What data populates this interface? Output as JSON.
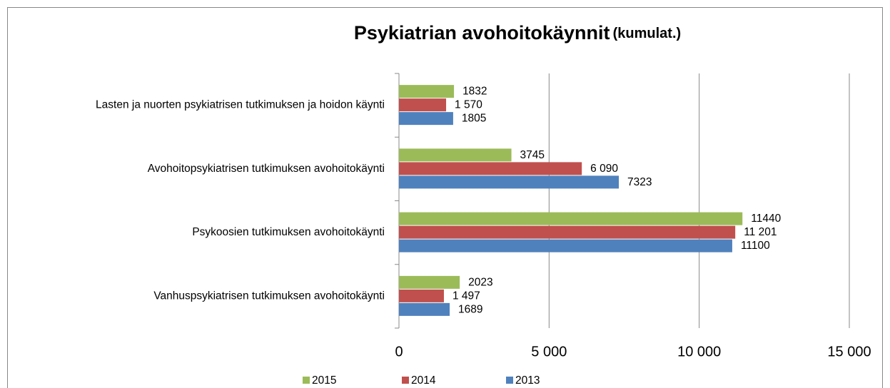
{
  "chart_data": {
    "type": "bar",
    "orientation": "horizontal",
    "title": "Psykiatrian avohoitokäynnit",
    "subtitle": "(kumulat.)",
    "categories": [
      "Lasten ja nuorten psykiatrisen tutkimuksen ja hoidon käynti",
      "Avohoitopsykiatrisen tutkimuksen avohoitokäynti",
      "Psykoosien tutkimuksen avohoitokäynti",
      "Vanhuspsykiatrisen tutkimuksen avohoitokäynti"
    ],
    "series": [
      {
        "name": "2015",
        "color": "#9bbb59",
        "values": [
          1832,
          3745,
          11440,
          2023
        ]
      },
      {
        "name": "2014",
        "color": "#c0504d",
        "values": [
          1570,
          6090,
          11201,
          1497
        ],
        "value_labels": [
          "1 570",
          "6 090",
          "11 201",
          "1 497"
        ]
      },
      {
        "name": "2013",
        "color": "#4f81bd",
        "values": [
          1805,
          7323,
          11100,
          1689
        ]
      }
    ],
    "xlim": [
      0,
      15000
    ],
    "xticks": [
      0,
      {
        "value": 5000,
        "label": "5 000"
      },
      {
        "value": 10000,
        "label": "10 000"
      },
      {
        "value": 15000,
        "label": "15 000"
      }
    ],
    "grid": true,
    "legend": "bottom"
  }
}
